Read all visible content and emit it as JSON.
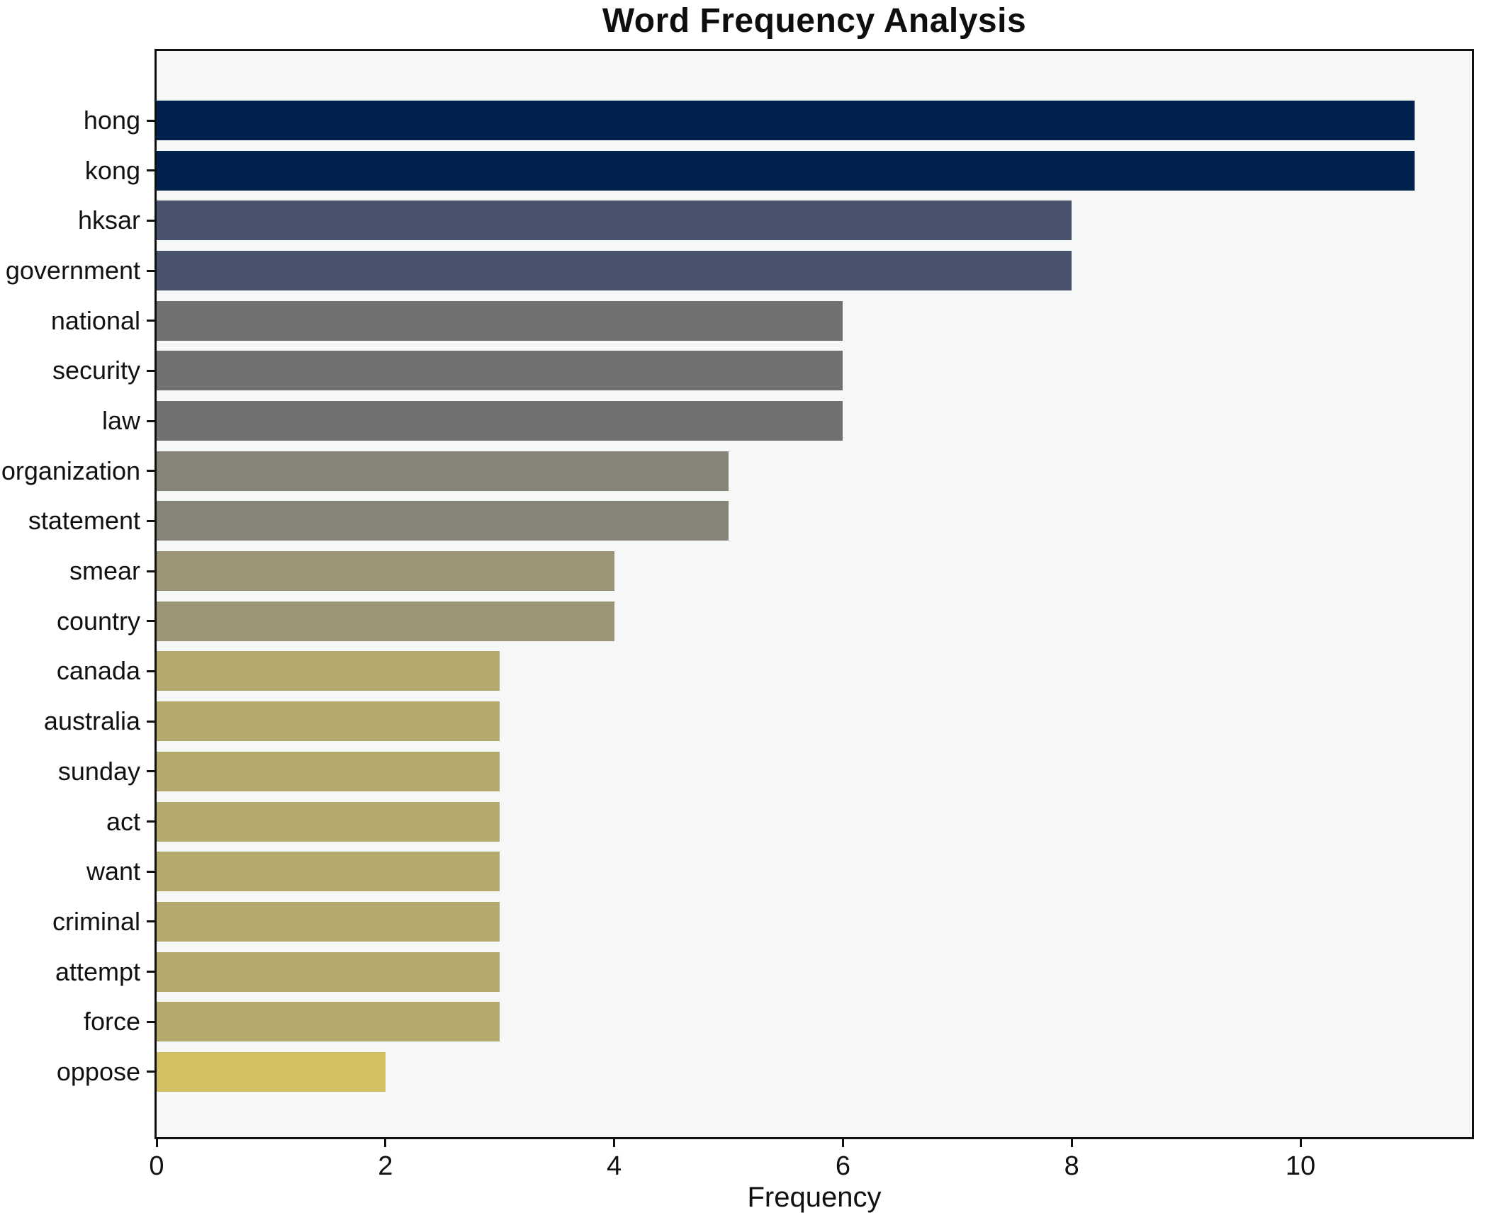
{
  "chart_data": {
    "type": "bar",
    "orientation": "horizontal",
    "title": "Word Frequency Analysis",
    "xlabel": "Frequency",
    "ylabel": "",
    "categories": [
      "hong",
      "kong",
      "hksar",
      "government",
      "national",
      "security",
      "law",
      "organization",
      "statement",
      "smear",
      "country",
      "canada",
      "australia",
      "sunday",
      "act",
      "want",
      "criminal",
      "attempt",
      "force",
      "oppose"
    ],
    "values": [
      11,
      11,
      8,
      8,
      6,
      6,
      6,
      5,
      5,
      4,
      4,
      3,
      3,
      3,
      3,
      3,
      3,
      3,
      3,
      2
    ],
    "bar_colors": [
      "#02224e",
      "#02224e",
      "#4a536d",
      "#4a536d",
      "#6f7173",
      "#6f7173",
      "#6f7173",
      "#868477",
      "#868477",
      "#9c9575",
      "#9c9575",
      "#b4aa6e",
      "#b4aa6e",
      "#b4aa6e",
      "#b4aa6e",
      "#b4aa6e",
      "#b4aa6e",
      "#b4aa6e",
      "#b4aa6e",
      "#d2c062"
    ],
    "x_ticks": [
      0,
      2,
      4,
      6,
      8,
      10
    ],
    "xlim": [
      0,
      11.51
    ],
    "grid": false,
    "legend": null,
    "colors": {
      "plot_background": "#f6f7f7",
      "figure_background": "#ffffff",
      "spine": "#111111",
      "text": "#111111"
    }
  }
}
